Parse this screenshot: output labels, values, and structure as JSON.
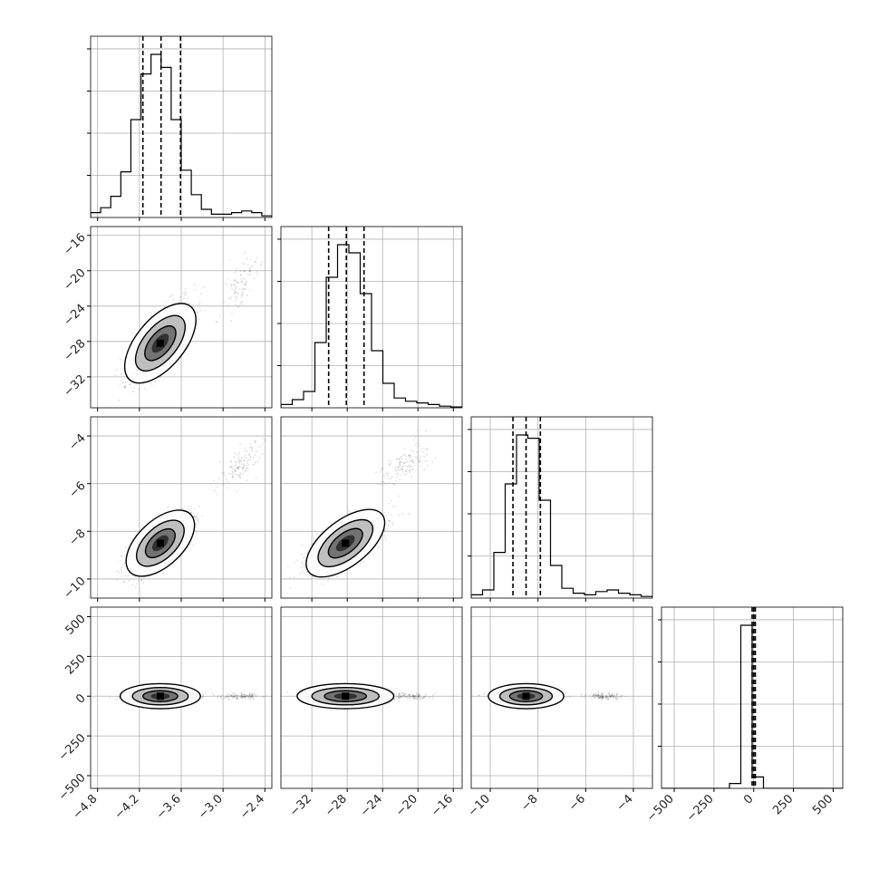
{
  "chart_data": {
    "type": "corner",
    "parameters": [
      {
        "id": "p1",
        "range": [
          -4.9,
          -2.3
        ],
        "ticks": [
          -4.8,
          -4.2,
          -3.6,
          -3.0,
          -2.4
        ],
        "tick_labels": [
          "−4.8",
          "−4.2",
          "−3.6",
          "−3.0",
          "−2.4"
        ],
        "quantiles": [
          -4.15,
          -3.89,
          -3.61
        ],
        "hist": [
          0.03,
          0.06,
          0.13,
          0.28,
          0.6,
          0.88,
          1.0,
          0.92,
          0.6,
          0.29,
          0.14,
          0.05,
          0.02,
          0.02,
          0.03,
          0.04,
          0.03,
          0.01
        ],
        "mean": -3.9,
        "std": 0.2,
        "sec_mean": -2.75,
        "sec_std": 0.15
      },
      {
        "id": "p2",
        "range": [
          -35.5,
          -15
        ],
        "ticks": [
          -32,
          -28,
          -24,
          -20,
          -16
        ],
        "tick_labels": [
          "−32",
          "−28",
          "−24",
          "−20",
          "−16"
        ],
        "quantiles": [
          -30.1,
          -28.1,
          -26.1
        ],
        "hist": [
          0.02,
          0.05,
          0.1,
          0.4,
          0.8,
          1.0,
          0.95,
          0.7,
          0.35,
          0.15,
          0.06,
          0.04,
          0.03,
          0.02,
          0.01,
          0.005
        ],
        "mean": -28.2,
        "std": 1.9,
        "sec_mean": -21.5,
        "sec_std": 1.5
      },
      {
        "id": "p3",
        "range": [
          -10.8,
          -3.2
        ],
        "ticks": [
          -10,
          -8,
          -6,
          -4
        ],
        "tick_labels": [
          "−10",
          "−8",
          "−6",
          "−4"
        ],
        "quantiles": [
          -9.05,
          -8.5,
          -7.9
        ],
        "hist": [
          0.02,
          0.05,
          0.28,
          0.7,
          1.0,
          0.98,
          0.6,
          0.2,
          0.06,
          0.03,
          0.02,
          0.04,
          0.05,
          0.03,
          0.02,
          0.01
        ],
        "mean": -8.5,
        "std": 0.55,
        "sec_mean": -5.2,
        "sec_std": 0.45
      },
      {
        "id": "p4",
        "range": [
          -580,
          560
        ],
        "ticks": [
          -500,
          -250,
          0,
          250,
          500
        ],
        "tick_labels": [
          "−500",
          "−250",
          "0",
          "250",
          "500"
        ],
        "quantiles": [
          -10,
          0,
          10
        ],
        "hist": [
          0.0,
          0.0,
          0.0,
          0.0,
          0.0,
          0.0,
          0.03,
          1.0,
          0.07,
          0.0,
          0.0,
          0.0,
          0.0,
          0.0,
          0.0,
          0.0
        ],
        "mean": 0,
        "std": 12,
        "sec_mean": 0,
        "sec_std": 10
      }
    ],
    "contour_levels": [
      0.39,
      0.86,
      0.99
    ],
    "grid": true
  }
}
